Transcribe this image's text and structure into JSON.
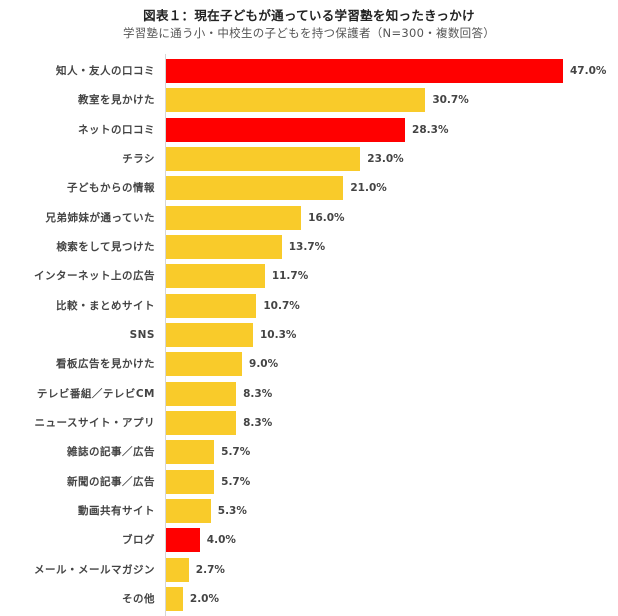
{
  "title": "図表１：現在子どもが通っている学習塾を知ったきっかけ",
  "subtitle": "学習塾に通う小・中校生の子どもを持つ保護者（N=300・複数回答）",
  "colors": {
    "highlight": "#ff0000",
    "default": "#f9cb2a"
  },
  "chart_data": {
    "type": "bar",
    "orientation": "horizontal",
    "title": "図表１：現在子どもが通っている学習塾を知ったきっかけ",
    "subtitle": "学習塾に通う小・中校生の子どもを持つ保護者（N=300・複数回答）",
    "xlabel": "",
    "ylabel": "",
    "unit": "%",
    "grid": false,
    "legend": null,
    "categories": [
      "知人・友人の口コミ",
      "教室を見かけた",
      "ネットの口コミ",
      "チラシ",
      "子どもからの情報",
      "兄弟姉妹が通っていた",
      "検索をして見つけた",
      "インターネット上の広告",
      "比較・まとめサイト",
      "SNS",
      "看板広告を見かけた",
      "テレビ番組／テレビCM",
      "ニュースサイト・アプリ",
      "雑誌の記事／広告",
      "新聞の記事／広告",
      "動画共有サイト",
      "ブログ",
      "メール・メールマガジン",
      "その他"
    ],
    "values": [
      47.0,
      30.7,
      28.3,
      23.0,
      21.0,
      16.0,
      13.7,
      11.7,
      10.7,
      10.3,
      9.0,
      8.3,
      8.3,
      5.7,
      5.7,
      5.3,
      4.0,
      2.7,
      2.0
    ],
    "value_labels": [
      "47.0%",
      "30.7%",
      "28.3%",
      "23.0%",
      "21.0%",
      "16.0%",
      "13.7%",
      "11.7%",
      "10.7%",
      "10.3%",
      "9.0%",
      "8.3%",
      "8.3%",
      "5.7%",
      "5.7%",
      "5.3%",
      "4.0%",
      "2.7%",
      "2.0%"
    ],
    "highlighted": [
      true,
      false,
      true,
      false,
      false,
      false,
      false,
      false,
      false,
      false,
      false,
      false,
      false,
      false,
      false,
      false,
      true,
      false,
      false
    ]
  }
}
